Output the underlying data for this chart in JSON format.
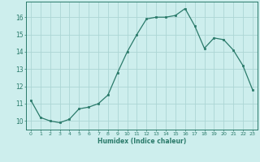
{
  "x": [
    0,
    1,
    2,
    3,
    4,
    5,
    6,
    7,
    8,
    9,
    10,
    11,
    12,
    13,
    14,
    15,
    16,
    17,
    18,
    19,
    20,
    21,
    22,
    23
  ],
  "y": [
    11.2,
    10.2,
    10.0,
    9.9,
    10.1,
    10.7,
    10.8,
    11.0,
    11.5,
    12.8,
    14.0,
    15.0,
    15.9,
    16.0,
    16.0,
    16.1,
    16.5,
    15.5,
    14.2,
    14.8,
    14.7,
    14.1,
    13.2,
    11.8
  ],
  "xlabel": "Humidex (Indice chaleur)",
  "bg_color": "#cdeeed",
  "grid_color": "#acd6d4",
  "line_color": "#2a7a6a",
  "xlim": [
    -0.5,
    23.5
  ],
  "ylim": [
    9.5,
    16.9
  ],
  "yticks": [
    10,
    11,
    12,
    13,
    14,
    15,
    16
  ],
  "xticks": [
    0,
    1,
    2,
    3,
    4,
    5,
    6,
    7,
    8,
    9,
    10,
    11,
    12,
    13,
    14,
    15,
    16,
    17,
    18,
    19,
    20,
    21,
    22,
    23
  ]
}
